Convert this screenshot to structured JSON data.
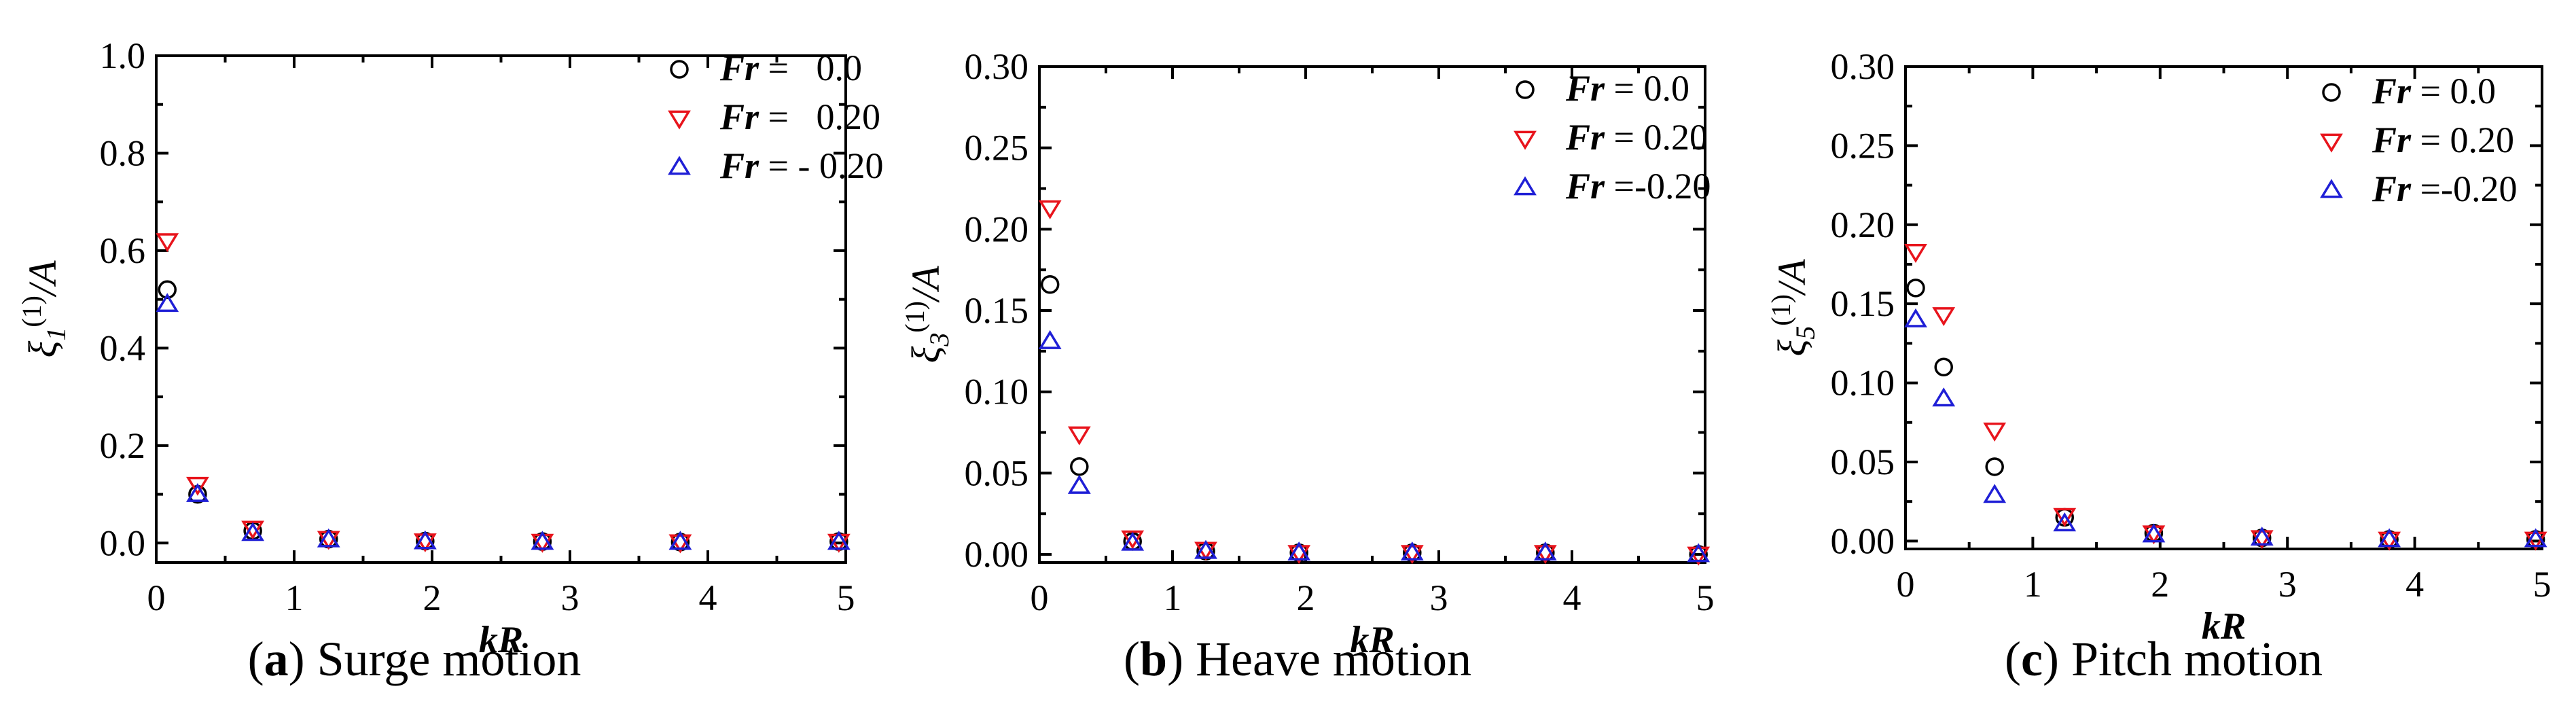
{
  "chart_data": [
    {
      "type": "scatter",
      "caption": {
        "letter": "a",
        "text": " Surge motion"
      },
      "xlabel": "kR",
      "ylabel": {
        "symbol": "ξ",
        "sub": "1",
        "sup": "(1)",
        "tail": "/A"
      },
      "xlim": [
        0,
        5
      ],
      "ylim": [
        -0.04,
        1.0
      ],
      "xticks": [
        "0",
        "1",
        "2",
        "3",
        "4",
        "5"
      ],
      "xtick_values": [
        0,
        1,
        2,
        3,
        4,
        5
      ],
      "yticks": [
        "0.0",
        "0.2",
        "0.4",
        "0.6",
        "0.8",
        "1.0"
      ],
      "ytick_values": [
        0.0,
        0.2,
        0.4,
        0.6,
        0.8,
        1.0
      ],
      "grid": false,
      "legend_position": "top-right",
      "x": [
        0.08,
        0.3,
        0.7,
        1.25,
        1.95,
        2.8,
        3.8,
        4.95
      ],
      "series": [
        {
          "name": "Fr = 0.0",
          "label_parts": [
            "Fr",
            " =   0.0"
          ],
          "marker": "circle",
          "color": "#000000",
          "values": [
            0.52,
            0.1,
            0.025,
            0.008,
            0.004,
            0.003,
            0.002,
            0.003
          ]
        },
        {
          "name": "Fr = 0.20",
          "label_parts": [
            "Fr",
            " =   0.20"
          ],
          "marker": "triangle-down",
          "color": "#e8141c",
          "values": [
            0.62,
            0.12,
            0.03,
            0.009,
            0.004,
            0.003,
            0.002,
            0.003
          ]
        },
        {
          "name": "Fr = - 0.20",
          "label_parts": [
            "Fr",
            " = - 0.20"
          ],
          "marker": "triangle-up",
          "color": "#1f1fd6",
          "values": [
            0.49,
            0.1,
            0.02,
            0.007,
            0.003,
            0.002,
            0.002,
            0.002
          ]
        }
      ]
    },
    {
      "type": "scatter",
      "caption": {
        "letter": "b",
        "text": " Heave motion"
      },
      "xlabel": "kR",
      "ylabel": {
        "symbol": "ξ",
        "sub": "3",
        "sup": "(1)",
        "tail": "/A"
      },
      "xlim": [
        0,
        5
      ],
      "ylim": [
        -0.005,
        0.3
      ],
      "xticks": [
        "0",
        "1",
        "2",
        "3",
        "4",
        "5"
      ],
      "xtick_values": [
        0,
        1,
        2,
        3,
        4,
        5
      ],
      "yticks": [
        "0.00",
        "0.05",
        "0.10",
        "0.15",
        "0.20",
        "0.25",
        "0.30"
      ],
      "ytick_values": [
        0.0,
        0.05,
        0.1,
        0.15,
        0.2,
        0.25,
        0.3
      ],
      "grid": false,
      "legend_position": "top-right",
      "x": [
        0.08,
        0.3,
        0.7,
        1.25,
        1.95,
        2.8,
        3.8,
        4.95
      ],
      "series": [
        {
          "name": "Fr = 0.0",
          "label_parts": [
            "Fr",
            " = 0.0"
          ],
          "marker": "circle",
          "color": "#000000",
          "values": [
            0.166,
            0.054,
            0.008,
            0.002,
            0.001,
            0.001,
            0.001,
            0.0
          ]
        },
        {
          "name": "Fr = 0.20",
          "label_parts": [
            "Fr",
            " = 0.20"
          ],
          "marker": "triangle-down",
          "color": "#e8141c",
          "values": [
            0.213,
            0.074,
            0.01,
            0.003,
            0.001,
            0.001,
            0.001,
            0.0
          ]
        },
        {
          "name": "Fr =-0.20",
          "label_parts": [
            "Fr",
            " =-0.20"
          ],
          "marker": "triangle-up",
          "color": "#1f1fd6",
          "values": [
            0.131,
            0.042,
            0.007,
            0.002,
            0.001,
            0.001,
            0.001,
            0.0
          ]
        }
      ]
    },
    {
      "type": "scatter",
      "caption": {
        "letter": "c",
        "text": " Pitch motion"
      },
      "xlabel": "kR",
      "ylabel": {
        "symbol": "ξ",
        "sub": "5",
        "sup": "(1)",
        "tail": "/A"
      },
      "xlim": [
        0,
        5
      ],
      "ylim": [
        -0.005,
        0.3
      ],
      "xticks": [
        "0",
        "1",
        "2",
        "3",
        "4",
        "5"
      ],
      "xtick_values": [
        0,
        1,
        2,
        3,
        4,
        5
      ],
      "yticks": [
        "0.00",
        "0.05",
        "0.10",
        "0.15",
        "0.20",
        "0.25",
        "0.30"
      ],
      "ytick_values": [
        0.0,
        0.05,
        0.1,
        0.15,
        0.2,
        0.25,
        0.3
      ],
      "grid": false,
      "legend_position": "top-right",
      "x": [
        0.08,
        0.3,
        0.7,
        1.25,
        1.95,
        2.8,
        3.8,
        4.95
      ],
      "series": [
        {
          "name": "Fr = 0.0",
          "label_parts": [
            "Fr",
            " = 0.0"
          ],
          "marker": "circle",
          "color": "#000000",
          "values": [
            0.16,
            0.11,
            0.047,
            0.015,
            0.005,
            0.002,
            0.001,
            0.001
          ]
        },
        {
          "name": "Fr = 0.20",
          "label_parts": [
            "Fr",
            " = 0.20"
          ],
          "marker": "triangle-down",
          "color": "#e8141c",
          "values": [
            0.183,
            0.143,
            0.07,
            0.016,
            0.005,
            0.002,
            0.001,
            0.001
          ]
        },
        {
          "name": "Fr =-0.20",
          "label_parts": [
            "Fr",
            " =-0.20"
          ],
          "marker": "triangle-up",
          "color": "#1f1fd6",
          "values": [
            0.14,
            0.09,
            0.029,
            0.011,
            0.004,
            0.002,
            0.001,
            0.001
          ]
        }
      ]
    }
  ]
}
